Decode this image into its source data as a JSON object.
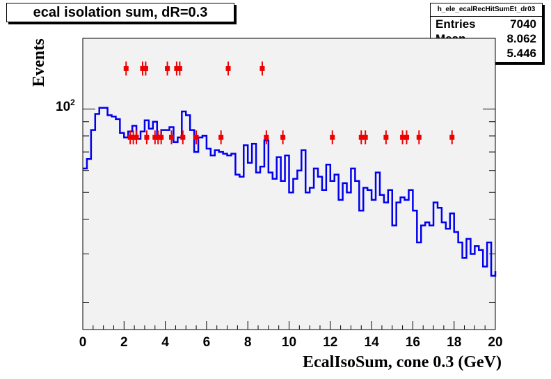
{
  "chart_data": {
    "type": "histogram",
    "title": "ecal isolation sum, dR=0.3",
    "xlabel": "EcalIsoSum, cone 0.3 (GeV)",
    "ylabel": "Events",
    "xlim": [
      0,
      20
    ],
    "ylim": [
      16,
      180
    ],
    "yscale": "log",
    "x_ticks": [
      0,
      2,
      4,
      6,
      8,
      10,
      12,
      14,
      16,
      18,
      20
    ],
    "y_tick_label": "10^2",
    "grid": false,
    "colors": {
      "histogram": "#0000ee",
      "markers": "#ee0000",
      "frame_bg": "#f2f2f2"
    },
    "stats": {
      "name": "h_ele_ecalRecHitSumEt_dr03",
      "entries": "7040",
      "mean": "8.062",
      "rms": "5.446"
    },
    "histogram": {
      "name": "",
      "bin_width": 0.2,
      "x_start": 0,
      "values": [
        61,
        66,
        84,
        96,
        101,
        101,
        95,
        94,
        92,
        82,
        79,
        83,
        87,
        78,
        83,
        91,
        85,
        90,
        80,
        84,
        84,
        86,
        76,
        79,
        98,
        95,
        84,
        70,
        79,
        80,
        72,
        68,
        71,
        70,
        69,
        68,
        69,
        58,
        57,
        74,
        64,
        75,
        59,
        62,
        77,
        59,
        56,
        67,
        55,
        68,
        50,
        56,
        60,
        71,
        50,
        52,
        61,
        57,
        51,
        63,
        55,
        58,
        47,
        54,
        50,
        61,
        55,
        43,
        52,
        51,
        47,
        59,
        49,
        46,
        51,
        38,
        46,
        48,
        47,
        51,
        43,
        33,
        38,
        39,
        38,
        46,
        44,
        39,
        37,
        42,
        36,
        33,
        29,
        34,
        30,
        32,
        31,
        27,
        33,
        25,
        26
      ]
    },
    "markers": {
      "name": "",
      "points": [
        {
          "x": 2.1,
          "y": 140
        },
        {
          "x": 2.9,
          "y": 140
        },
        {
          "x": 3.05,
          "y": 140
        },
        {
          "x": 4.1,
          "y": 140
        },
        {
          "x": 4.55,
          "y": 140
        },
        {
          "x": 4.7,
          "y": 140
        },
        {
          "x": 7.05,
          "y": 140
        },
        {
          "x": 8.7,
          "y": 140
        },
        {
          "x": 2.3,
          "y": 79
        },
        {
          "x": 2.45,
          "y": 79
        },
        {
          "x": 2.6,
          "y": 79
        },
        {
          "x": 3.1,
          "y": 79
        },
        {
          "x": 3.5,
          "y": 79
        },
        {
          "x": 3.65,
          "y": 79
        },
        {
          "x": 3.8,
          "y": 79
        },
        {
          "x": 4.3,
          "y": 79
        },
        {
          "x": 4.85,
          "y": 79
        },
        {
          "x": 5.5,
          "y": 79
        },
        {
          "x": 6.7,
          "y": 79
        },
        {
          "x": 8.9,
          "y": 79
        },
        {
          "x": 9.7,
          "y": 79
        },
        {
          "x": 12.1,
          "y": 79
        },
        {
          "x": 13.5,
          "y": 79
        },
        {
          "x": 13.7,
          "y": 79
        },
        {
          "x": 14.7,
          "y": 79
        },
        {
          "x": 15.5,
          "y": 79
        },
        {
          "x": 15.7,
          "y": 79
        },
        {
          "x": 16.3,
          "y": 79
        },
        {
          "x": 17.9,
          "y": 79
        }
      ]
    }
  }
}
